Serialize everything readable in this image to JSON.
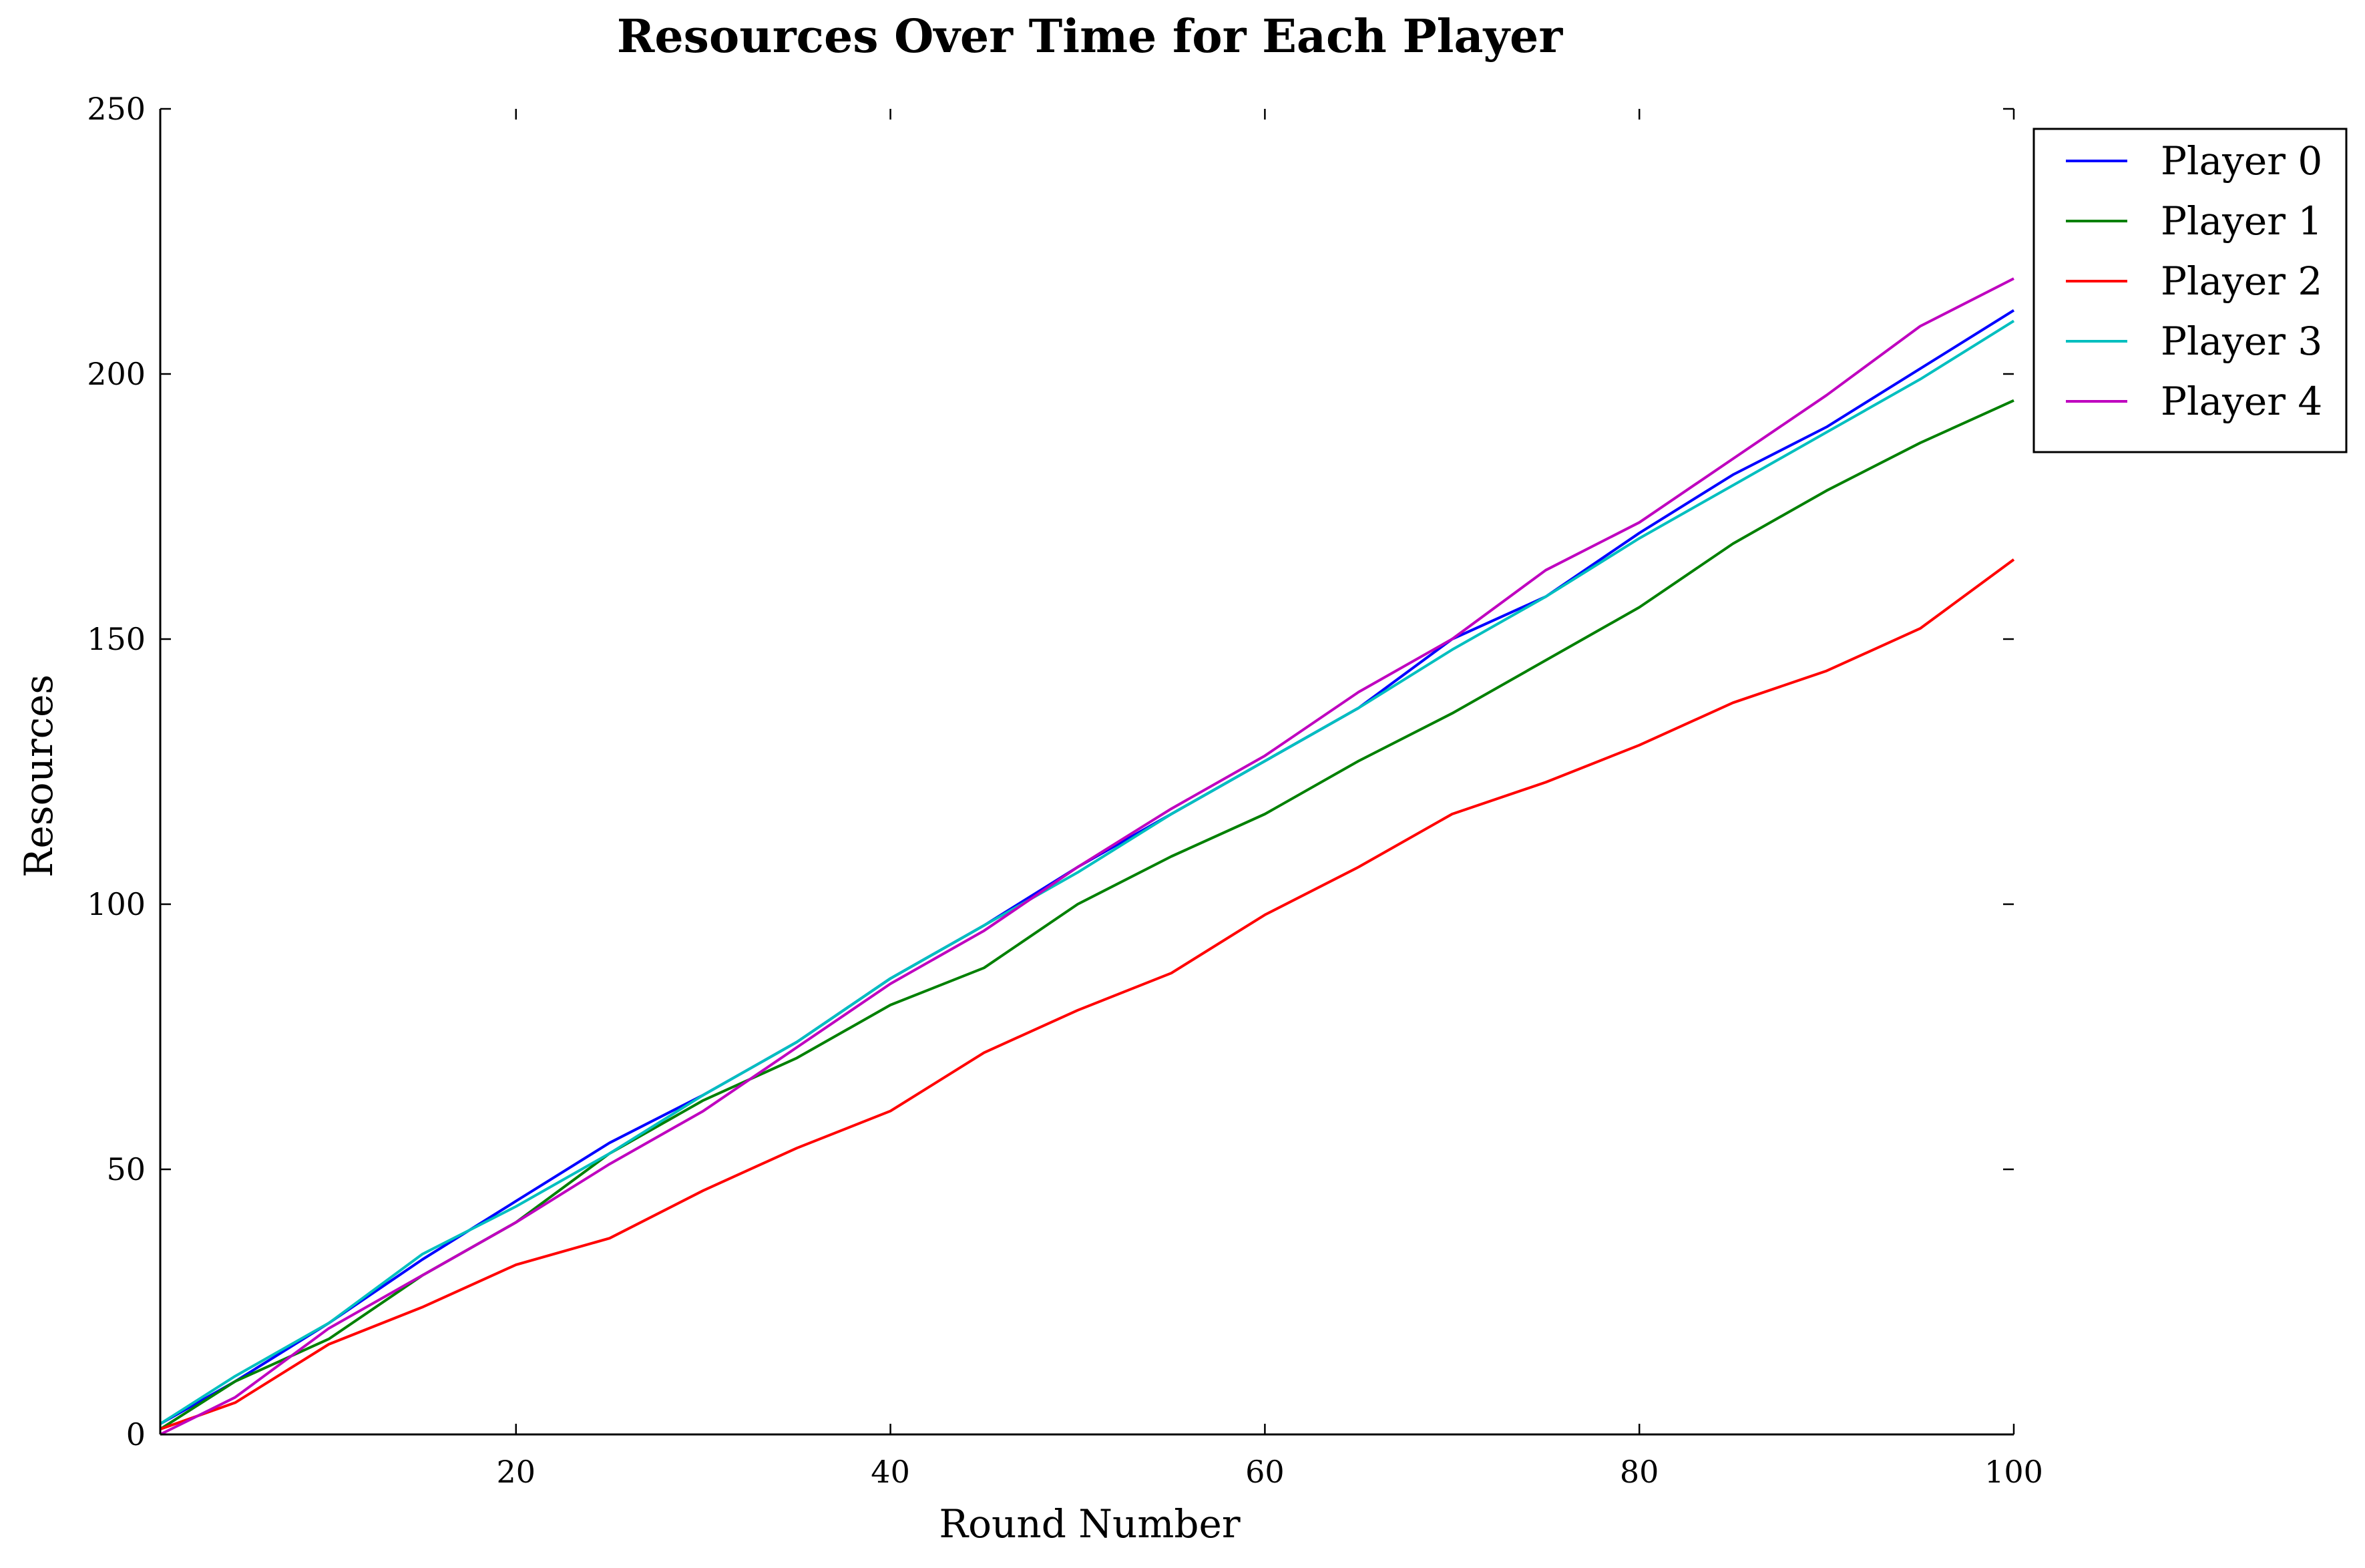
{
  "chart_data": {
    "type": "line",
    "title": "Resources Over Time for Each Player",
    "xlabel": "Round Number",
    "ylabel": "Resources",
    "xlim": [
      1,
      100
    ],
    "ylim": [
      0,
      250
    ],
    "x_ticks": [
      20,
      40,
      60,
      80,
      100
    ],
    "y_ticks": [
      0,
      50,
      100,
      150,
      200,
      250
    ],
    "grid": false,
    "legend_position": "top-right, outside axes",
    "x": [
      1,
      5,
      10,
      15,
      20,
      25,
      30,
      35,
      40,
      45,
      50,
      55,
      60,
      65,
      70,
      75,
      80,
      85,
      90,
      95,
      100
    ],
    "series": [
      {
        "name": "Player 0",
        "color": "#0000ff",
        "values": [
          2,
          10,
          21,
          33,
          44,
          55,
          64,
          74,
          86,
          96,
          107,
          117,
          127,
          137,
          150,
          158,
          170,
          181,
          190,
          201,
          212
        ]
      },
      {
        "name": "Player 1",
        "color": "#008000",
        "values": [
          1,
          10,
          18,
          30,
          40,
          53,
          63,
          71,
          81,
          88,
          100,
          109,
          117,
          127,
          136,
          146,
          156,
          168,
          178,
          187,
          195
        ]
      },
      {
        "name": "Player 2",
        "color": "#ff0000",
        "values": [
          1,
          6,
          17,
          24,
          32,
          37,
          46,
          54,
          61,
          72,
          80,
          87,
          98,
          107,
          117,
          123,
          130,
          138,
          144,
          152,
          165
        ]
      },
      {
        "name": "Player 3",
        "color": "#00bfbf",
        "values": [
          2,
          11,
          21,
          34,
          43,
          53,
          64,
          74,
          86,
          96,
          106,
          117,
          127,
          137,
          148,
          158,
          169,
          179,
          189,
          199,
          210
        ]
      },
      {
        "name": "Player 4",
        "color": "#bf00bf",
        "values": [
          0,
          7,
          20,
          30,
          40,
          51,
          61,
          73,
          85,
          95,
          107,
          118,
          128,
          140,
          150,
          163,
          172,
          184,
          196,
          209,
          218
        ]
      }
    ]
  }
}
